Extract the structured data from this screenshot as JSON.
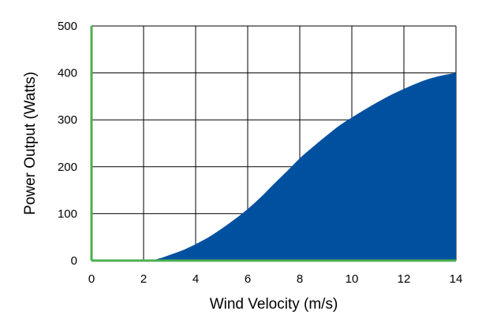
{
  "chart_data": {
    "type": "area",
    "title": "",
    "xlabel": "Wind Velocity (m/s)",
    "ylabel": "Power Output (Watts)",
    "xlim": [
      0,
      14
    ],
    "ylim": [
      0,
      500
    ],
    "x_ticks": [
      0,
      2,
      4,
      6,
      8,
      10,
      12,
      14
    ],
    "y_ticks": [
      0,
      100,
      200,
      300,
      400,
      500
    ],
    "grid": true,
    "legend": "none",
    "colors": {
      "area": "#0050A0",
      "axis": "#4CAF50",
      "grid": "#000000"
    },
    "series": [
      {
        "x": [
          0,
          1,
          2,
          2.5,
          3,
          3.5,
          4,
          4.5,
          5,
          5.5,
          6,
          6.5,
          7,
          7.5,
          8,
          8.5,
          9,
          9.5,
          10,
          10.5,
          11,
          11.5,
          12,
          12.5,
          13,
          13.5,
          14
        ],
        "values": [
          0,
          0,
          0,
          3,
          12,
          22,
          35,
          50,
          68,
          88,
          110,
          135,
          163,
          190,
          218,
          242,
          265,
          287,
          305,
          322,
          338,
          353,
          366,
          378,
          388,
          395,
          400
        ]
      }
    ]
  }
}
